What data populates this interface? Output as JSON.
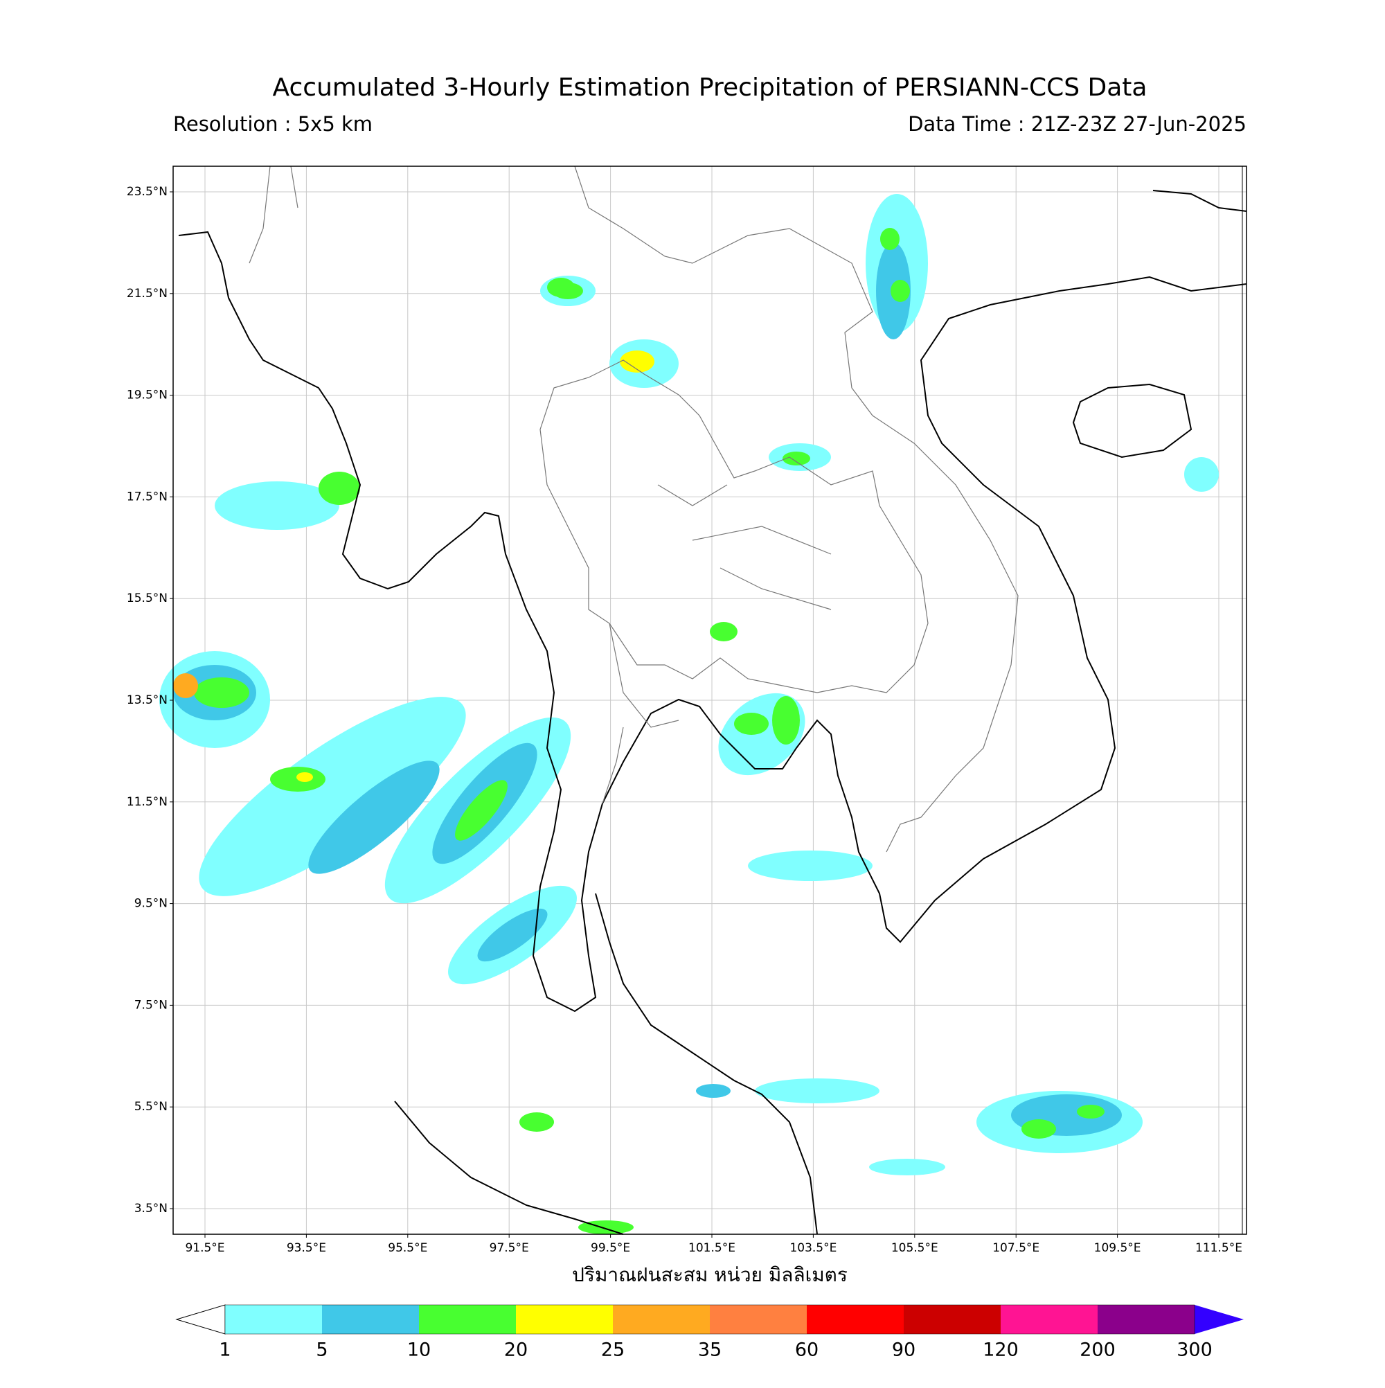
{
  "header": {
    "title": "Accumulated 3-Hourly Estimation Precipitation of PERSIANN-CCS Data",
    "resolution": "Resolution : 5x5 km",
    "data_time": "Data Time : 21Z-23Z 27-Jun-2025"
  },
  "map": {
    "lat_ticks": [
      "23.5°N",
      "21.5°N",
      "19.5°N",
      "17.5°N",
      "15.5°N",
      "13.5°N",
      "11.5°N",
      "9.5°N",
      "7.5°N",
      "5.5°N",
      "3.5°N"
    ],
    "lon_ticks": [
      "91.5°E",
      "93.5°E",
      "95.5°E",
      "97.5°E",
      "99.5°E",
      "101.5°E",
      "103.5°E",
      "105.5°E",
      "107.5°E",
      "109.5°E",
      "111.5°E"
    ],
    "xlabel": "ปริมาณฝนสะสม หน่วย มิลลิเมตร"
  },
  "colorbar": {
    "levels": [
      1,
      5,
      10,
      20,
      25,
      35,
      60,
      90,
      120,
      200,
      300
    ],
    "colors": [
      "#80ffff",
      "#40c8e8",
      "#48ff30",
      "#ffff00",
      "#ffaa20",
      "#ff8040",
      "#ff0000",
      "#cc0000",
      "#ff1493",
      "#8b008b"
    ],
    "under_color": "#ffffff",
    "over_color": "#3300ff"
  }
}
